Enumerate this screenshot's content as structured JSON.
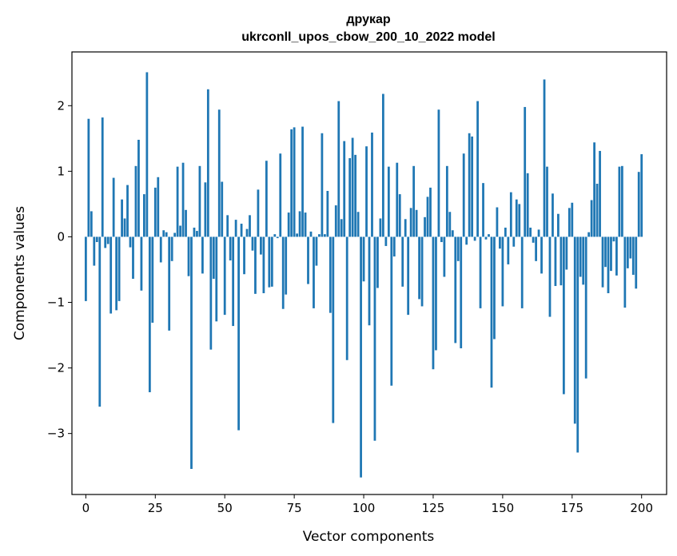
{
  "chart_data": {
    "type": "bar",
    "title": "друкар",
    "subtitle": "ukrconll_upos_cbow_200_10_2022 model",
    "xlabel": "Vector components",
    "ylabel": "Components values",
    "xlim": [
      -5,
      209
    ],
    "ylim": [
      -3.93,
      2.82
    ],
    "xticks": [
      0,
      25,
      50,
      75,
      100,
      125,
      150,
      175,
      200
    ],
    "xtick_labels": [
      "0",
      "25",
      "50",
      "75",
      "100",
      "125",
      "150",
      "175",
      "200"
    ],
    "yticks": [
      -3,
      -2,
      -1,
      0,
      1,
      2
    ],
    "ytick_labels": [
      "−3",
      "−2",
      "−1",
      "0",
      "1",
      "2"
    ],
    "bar_color": "#1f77b4",
    "values": [
      -0.98,
      1.8,
      0.39,
      -0.44,
      -0.08,
      -2.59,
      1.82,
      -0.17,
      -0.11,
      -1.17,
      0.9,
      -1.12,
      -0.98,
      0.57,
      0.28,
      0.79,
      -0.16,
      -0.64,
      1.08,
      1.48,
      -0.82,
      0.65,
      2.51,
      -2.37,
      -1.31,
      0.75,
      0.91,
      -0.39,
      0.1,
      0.07,
      -1.43,
      -0.37,
      0.06,
      1.07,
      0.17,
      1.13,
      0.41,
      -0.6,
      -3.54,
      0.14,
      0.09,
      1.08,
      -0.56,
      0.83,
      2.25,
      -1.72,
      -0.64,
      -1.29,
      1.94,
      0.84,
      -1.19,
      0.33,
      -0.36,
      -1.36,
      0.26,
      -2.95,
      0.2,
      -0.57,
      0.12,
      0.33,
      -0.21,
      -0.87,
      0.72,
      -0.27,
      -0.86,
      1.16,
      -0.77,
      -0.76,
      0.04,
      -0.02,
      1.27,
      -1.1,
      -0.88,
      0.37,
      1.64,
      1.67,
      0.05,
      0.39,
      1.68,
      0.37,
      -0.72,
      0.08,
      -1.09,
      -0.44,
      0.04,
      1.58,
      0.04,
      0.7,
      -1.16,
      -2.84,
      0.48,
      2.07,
      0.27,
      1.46,
      -1.88,
      1.2,
      1.51,
      1.25,
      0.38,
      -3.67,
      -0.68,
      1.38,
      -1.35,
      1.59,
      -3.11,
      -0.78,
      0.28,
      2.18,
      -0.14,
      1.07,
      -2.27,
      -0.3,
      1.13,
      0.65,
      -0.76,
      0.27,
      -1.19,
      0.44,
      1.08,
      0.41,
      -0.95,
      -1.06,
      0.3,
      0.61,
      0.75,
      -2.02,
      -1.73,
      1.94,
      -0.08,
      -0.61,
      1.08,
      0.38,
      0.1,
      -1.62,
      -0.37,
      -1.7,
      1.27,
      -0.12,
      1.58,
      1.53,
      -0.06,
      2.07,
      -1.09,
      0.82,
      -0.04,
      0.04,
      -2.3,
      -1.56,
      0.45,
      -0.18,
      -1.06,
      0.14,
      -0.42,
      0.68,
      -0.15,
      0.57,
      0.5,
      -1.09,
      1.98,
      0.97,
      0.14,
      -0.09,
      -0.37,
      0.11,
      -0.56,
      2.4,
      1.07,
      -1.22,
      0.66,
      -0.75,
      0.35,
      -0.74,
      -2.4,
      -0.5,
      0.44,
      0.52,
      -2.85,
      -3.29,
      -0.61,
      -0.73,
      -2.16,
      0.07,
      0.56,
      1.44,
      0.81,
      1.31,
      -0.77,
      -0.46,
      -0.86,
      -0.52,
      -0.07,
      -0.59,
      1.07,
      1.08,
      -1.08,
      -0.48,
      -0.33,
      -0.58,
      -0.79,
      0.99,
      1.26
    ]
  }
}
